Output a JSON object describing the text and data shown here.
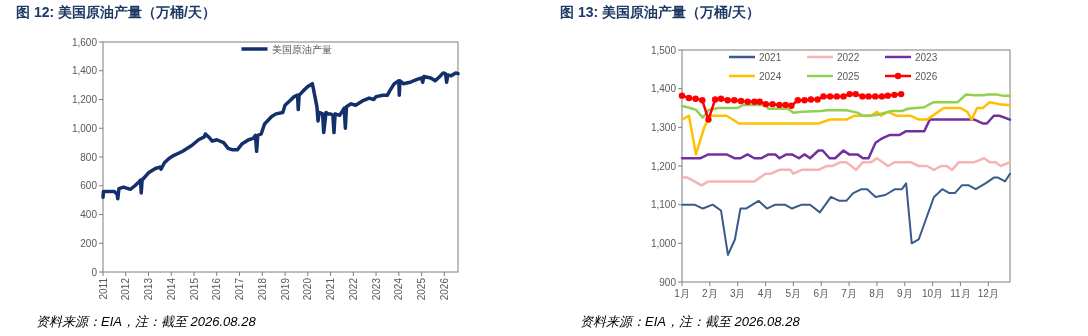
{
  "chart_data": [
    {
      "type": "line",
      "title": "图 12: 美国原油产量（万桶/天）",
      "annotations": [
        "资料来源：EIA，注：截至 2026.08.28"
      ],
      "xlim": [
        2011,
        2026.6
      ],
      "xticks": [
        2011,
        2012,
        2013,
        2014,
        2015,
        2016,
        2017,
        2018,
        2019,
        2020,
        2021,
        2022,
        2023,
        2024,
        2025,
        2026
      ],
      "ylim": [
        0,
        1600
      ],
      "yticks": [
        {
          "value": 0,
          "label": "0"
        },
        {
          "value": 200,
          "label": "200"
        },
        {
          "value": 400,
          "label": "400"
        },
        {
          "value": 600,
          "label": "600"
        },
        {
          "value": 800,
          "label": "800"
        },
        {
          "value": 1000,
          "label": "1,000"
        },
        {
          "value": 1200,
          "label": "1,200"
        },
        {
          "value": 1400,
          "label": "1,400"
        },
        {
          "value": 1600,
          "label": "1,600"
        }
      ],
      "grid": false,
      "legend": "top",
      "marker": "none",
      "line_style": "solid",
      "series": [
        {
          "name": "美国原油产量",
          "color": "#14306b",
          "x": [
            2011.0,
            2011.02,
            2011.5,
            2011.62,
            2011.65,
            2011.7,
            2011.9,
            2012.2,
            2012.4,
            2012.6,
            2012.65,
            2012.68,
            2012.72,
            2013.0,
            2013.3,
            2013.5,
            2013.55,
            2013.7,
            2013.9,
            2014.1,
            2014.5,
            2014.9,
            2015.2,
            2015.45,
            2015.5,
            2015.7,
            2015.8,
            2016.0,
            2016.3,
            2016.5,
            2016.7,
            2016.9,
            2017.1,
            2017.4,
            2017.6,
            2017.7,
            2017.75,
            2017.8,
            2017.95,
            2018.1,
            2018.4,
            2018.6,
            2018.9,
            2019.0,
            2019.2,
            2019.4,
            2019.55,
            2019.58,
            2019.62,
            2019.8,
            2020.0,
            2020.2,
            2020.3,
            2020.4,
            2020.45,
            2020.5,
            2020.65,
            2020.7,
            2020.8,
            2020.9,
            2021.0,
            2021.1,
            2021.15,
            2021.2,
            2021.4,
            2021.6,
            2021.65,
            2021.7,
            2021.9,
            2022.1,
            2022.4,
            2022.7,
            2022.9,
            2023.0,
            2023.3,
            2023.5,
            2023.6,
            2023.8,
            2024.0,
            2024.02,
            2024.05,
            2024.2,
            2024.5,
            2024.8,
            2025.0,
            2025.05,
            2025.1,
            2025.4,
            2025.6,
            2025.8,
            2025.95,
            2026.05,
            2026.1,
            2026.15,
            2026.3,
            2026.5,
            2026.6
          ],
          "values": [
            520,
            560,
            560,
            540,
            510,
            580,
            590,
            575,
            600,
            630,
            640,
            550,
            640,
            690,
            720,
            730,
            715,
            760,
            790,
            810,
            840,
            880,
            920,
            940,
            960,
            930,
            910,
            920,
            900,
            860,
            850,
            850,
            890,
            920,
            930,
            950,
            840,
            950,
            960,
            1030,
            1080,
            1100,
            1110,
            1160,
            1190,
            1220,
            1230,
            1130,
            1230,
            1260,
            1290,
            1310,
            1230,
            1150,
            1050,
            1110,
            1100,
            970,
            1110,
            1100,
            1100,
            1090,
            970,
            1100,
            1090,
            1140,
            1000,
            1150,
            1170,
            1160,
            1190,
            1210,
            1200,
            1220,
            1230,
            1230,
            1260,
            1310,
            1330,
            1230,
            1330,
            1310,
            1320,
            1340,
            1350,
            1320,
            1360,
            1350,
            1330,
            1360,
            1385,
            1380,
            1320,
            1370,
            1365,
            1385,
            1380
          ]
        }
      ]
    },
    {
      "type": "line",
      "title": "图 13: 美国原油产量（万桶/天）",
      "annotations": [
        "资料来源：EIA，注：截至 2026.08.28"
      ],
      "xlim": [
        1,
        12.78
      ],
      "xticks": [
        {
          "value": 1,
          "label": "1月"
        },
        {
          "value": 2,
          "label": "2月"
        },
        {
          "value": 3,
          "label": "3月"
        },
        {
          "value": 4,
          "label": "4月"
        },
        {
          "value": 5,
          "label": "5月"
        },
        {
          "value": 6,
          "label": "6月"
        },
        {
          "value": 7,
          "label": "7月"
        },
        {
          "value": 8,
          "label": "8月"
        },
        {
          "value": 9,
          "label": "9月"
        },
        {
          "value": 10,
          "label": "10月"
        },
        {
          "value": 11,
          "label": "11月"
        },
        {
          "value": 12,
          "label": "12月"
        }
      ],
      "ylim": [
        900,
        1500
      ],
      "yticks": [
        {
          "value": 900,
          "label": "900"
        },
        {
          "value": 1000,
          "label": "1,000"
        },
        {
          "value": 1100,
          "label": "1,100"
        },
        {
          "value": 1200,
          "label": "1,200"
        },
        {
          "value": 1300,
          "label": "1,300"
        },
        {
          "value": 1400,
          "label": "1,400"
        },
        {
          "value": 1500,
          "label": "1,500"
        }
      ],
      "grid": false,
      "legend": "top",
      "line_style": "solid",
      "series": [
        {
          "name": "2021",
          "color": "#3a5a8c",
          "marker": "none",
          "x": [
            1,
            1.45,
            1.75,
            2.1,
            2.4,
            2.65,
            2.9,
            3.1,
            3.3,
            3.75,
            4.05,
            4.35,
            4.7,
            4.95,
            5.3,
            5.6,
            5.95,
            6.35,
            6.65,
            6.9,
            7.15,
            7.45,
            7.65,
            7.95,
            8.3,
            8.65,
            8.9,
            9.05,
            9.25,
            9.5,
            9.8,
            10.05,
            10.35,
            10.6,
            10.8,
            11.05,
            11.3,
            11.55,
            11.9,
            12.2,
            12.35,
            12.6,
            12.78
          ],
          "values": [
            1100,
            1100,
            1090,
            1100,
            1085,
            970,
            1010,
            1090,
            1090,
            1110,
            1090,
            1100,
            1100,
            1090,
            1100,
            1100,
            1080,
            1120,
            1110,
            1110,
            1130,
            1140,
            1140,
            1120,
            1125,
            1140,
            1140,
            1155,
            1000,
            1010,
            1070,
            1120,
            1140,
            1130,
            1130,
            1150,
            1150,
            1140,
            1155,
            1170,
            1170,
            1160,
            1180
          ]
        },
        {
          "name": "2022",
          "color": "#f7b3b3",
          "marker": "none",
          "x": [
            1,
            1.2,
            1.7,
            1.95,
            2.5,
            3.3,
            3.6,
            4.0,
            4.2,
            4.5,
            4.9,
            5.0,
            5.3,
            5.9,
            6.2,
            6.4,
            6.7,
            6.9,
            7.25,
            7.5,
            7.8,
            8.0,
            8.4,
            8.65,
            9.2,
            9.5,
            9.8,
            10.05,
            10.3,
            10.5,
            10.7,
            10.95,
            11.5,
            11.85,
            12.05,
            12.25,
            12.45,
            12.78
          ],
          "values": [
            1170,
            1170,
            1150,
            1160,
            1160,
            1160,
            1160,
            1180,
            1180,
            1190,
            1190,
            1180,
            1190,
            1190,
            1200,
            1200,
            1210,
            1210,
            1190,
            1210,
            1210,
            1220,
            1200,
            1210,
            1210,
            1200,
            1200,
            1190,
            1200,
            1200,
            1190,
            1210,
            1210,
            1220,
            1210,
            1210,
            1200,
            1210
          ]
        },
        {
          "name": "2023",
          "color": "#7030a0",
          "marker": "none",
          "x": [
            1,
            1.65,
            1.95,
            2.6,
            2.9,
            3.1,
            3.35,
            3.6,
            3.85,
            4.1,
            4.35,
            4.5,
            4.75,
            4.95,
            5.2,
            5.4,
            5.6,
            5.9,
            6.05,
            6.3,
            6.5,
            6.8,
            7.0,
            7.3,
            7.5,
            7.7,
            7.95,
            8.15,
            8.45,
            8.8,
            9.05,
            9.5,
            9.7,
            9.9,
            10.1,
            11.5,
            11.8,
            11.95,
            12.2,
            12.4,
            12.78
          ],
          "values": [
            1220,
            1220,
            1230,
            1230,
            1220,
            1220,
            1230,
            1220,
            1220,
            1230,
            1230,
            1220,
            1230,
            1230,
            1220,
            1230,
            1220,
            1240,
            1240,
            1220,
            1220,
            1240,
            1230,
            1230,
            1220,
            1220,
            1260,
            1270,
            1280,
            1280,
            1290,
            1290,
            1290,
            1320,
            1320,
            1320,
            1310,
            1310,
            1330,
            1330,
            1320
          ]
        },
        {
          "name": "2024",
          "color": "#ffc000",
          "marker": "none",
          "x": [
            1,
            1.25,
            1.5,
            1.8,
            2.0,
            2.6,
            3.05,
            5.9,
            6.3,
            6.9,
            7.2,
            7.8,
            8.0,
            8.15,
            8.4,
            8.7,
            9.2,
            9.5,
            9.8,
            10.4,
            11.0,
            11.25,
            11.4,
            11.6,
            11.8,
            12.05,
            12.4,
            12.78
          ],
          "values": [
            1320,
            1330,
            1230,
            1300,
            1330,
            1330,
            1310,
            1310,
            1320,
            1320,
            1330,
            1330,
            1340,
            1330,
            1340,
            1330,
            1330,
            1320,
            1320,
            1350,
            1350,
            1340,
            1320,
            1350,
            1350,
            1365,
            1360,
            1357
          ]
        },
        {
          "name": "2025",
          "color": "#92d050",
          "marker": "none",
          "x": [
            1,
            1.3,
            1.5,
            1.75,
            1.95,
            2.3,
            3.0,
            3.2,
            4.0,
            4.1,
            4.8,
            5.0,
            5.3,
            6.0,
            6.2,
            6.9,
            7.3,
            7.5,
            7.7,
            8.0,
            8.5,
            8.9,
            9.1,
            9.4,
            9.7,
            9.9,
            10.05,
            10.9,
            11.2,
            11.5,
            11.8,
            12.0,
            12.3,
            12.5,
            12.78
          ],
          "values": [
            1355,
            1350,
            1345,
            1325,
            1345,
            1350,
            1350,
            1358,
            1358,
            1348,
            1348,
            1338,
            1340,
            1342,
            1344,
            1344,
            1338,
            1330,
            1330,
            1332,
            1342,
            1342,
            1348,
            1350,
            1352,
            1360,
            1365,
            1365,
            1385,
            1383,
            1383,
            1385,
            1385,
            1382,
            1382
          ]
        },
        {
          "name": "2026",
          "color": "#ff0000",
          "marker": "circle",
          "x": [
            1,
            1.25,
            1.49,
            1.73,
            1.95,
            2.19,
            2.4,
            2.64,
            2.88,
            3.12,
            3.36,
            3.6,
            3.79,
            4.01,
            4.25,
            4.5,
            4.72,
            4.93,
            5.16,
            5.4,
            5.63,
            5.87,
            6.08,
            6.32,
            6.56,
            6.8,
            7.02,
            7.24,
            7.48,
            7.7,
            7.94,
            8.18,
            8.39,
            8.63,
            8.87
          ],
          "values": [
            1382,
            1376,
            1374,
            1370,
            1320,
            1372,
            1374,
            1370,
            1370,
            1368,
            1366,
            1366,
            1366,
            1360,
            1360,
            1358,
            1358,
            1356,
            1370,
            1370,
            1372,
            1372,
            1380,
            1380,
            1380,
            1380,
            1386,
            1386,
            1380,
            1380,
            1380,
            1380,
            1382,
            1384,
            1386
          ]
        }
      ]
    }
  ]
}
